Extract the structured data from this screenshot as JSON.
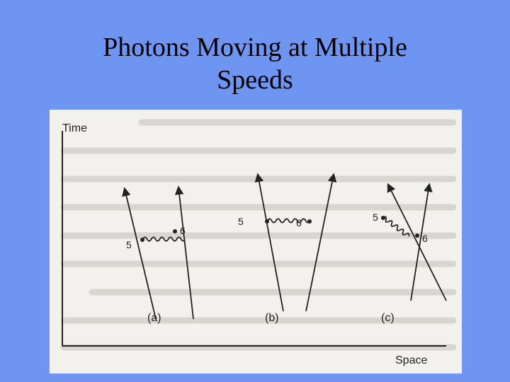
{
  "slide": {
    "title_line1": "Photons Moving at Multiple",
    "title_line2": "Speeds"
  },
  "diagram": {
    "axis_y_label": "Time",
    "axis_x_label": "Space",
    "panels": [
      {
        "caption": "(a)",
        "event_a": "5",
        "event_b": "6"
      },
      {
        "caption": "(b)",
        "event_a": "5",
        "event_b": "6"
      },
      {
        "caption": "(c)",
        "event_a": "5",
        "event_b": "6"
      }
    ]
  },
  "colors": {
    "background": "#6f95f3",
    "figure_bg": "#f3f1ee",
    "ink": "#222222"
  }
}
